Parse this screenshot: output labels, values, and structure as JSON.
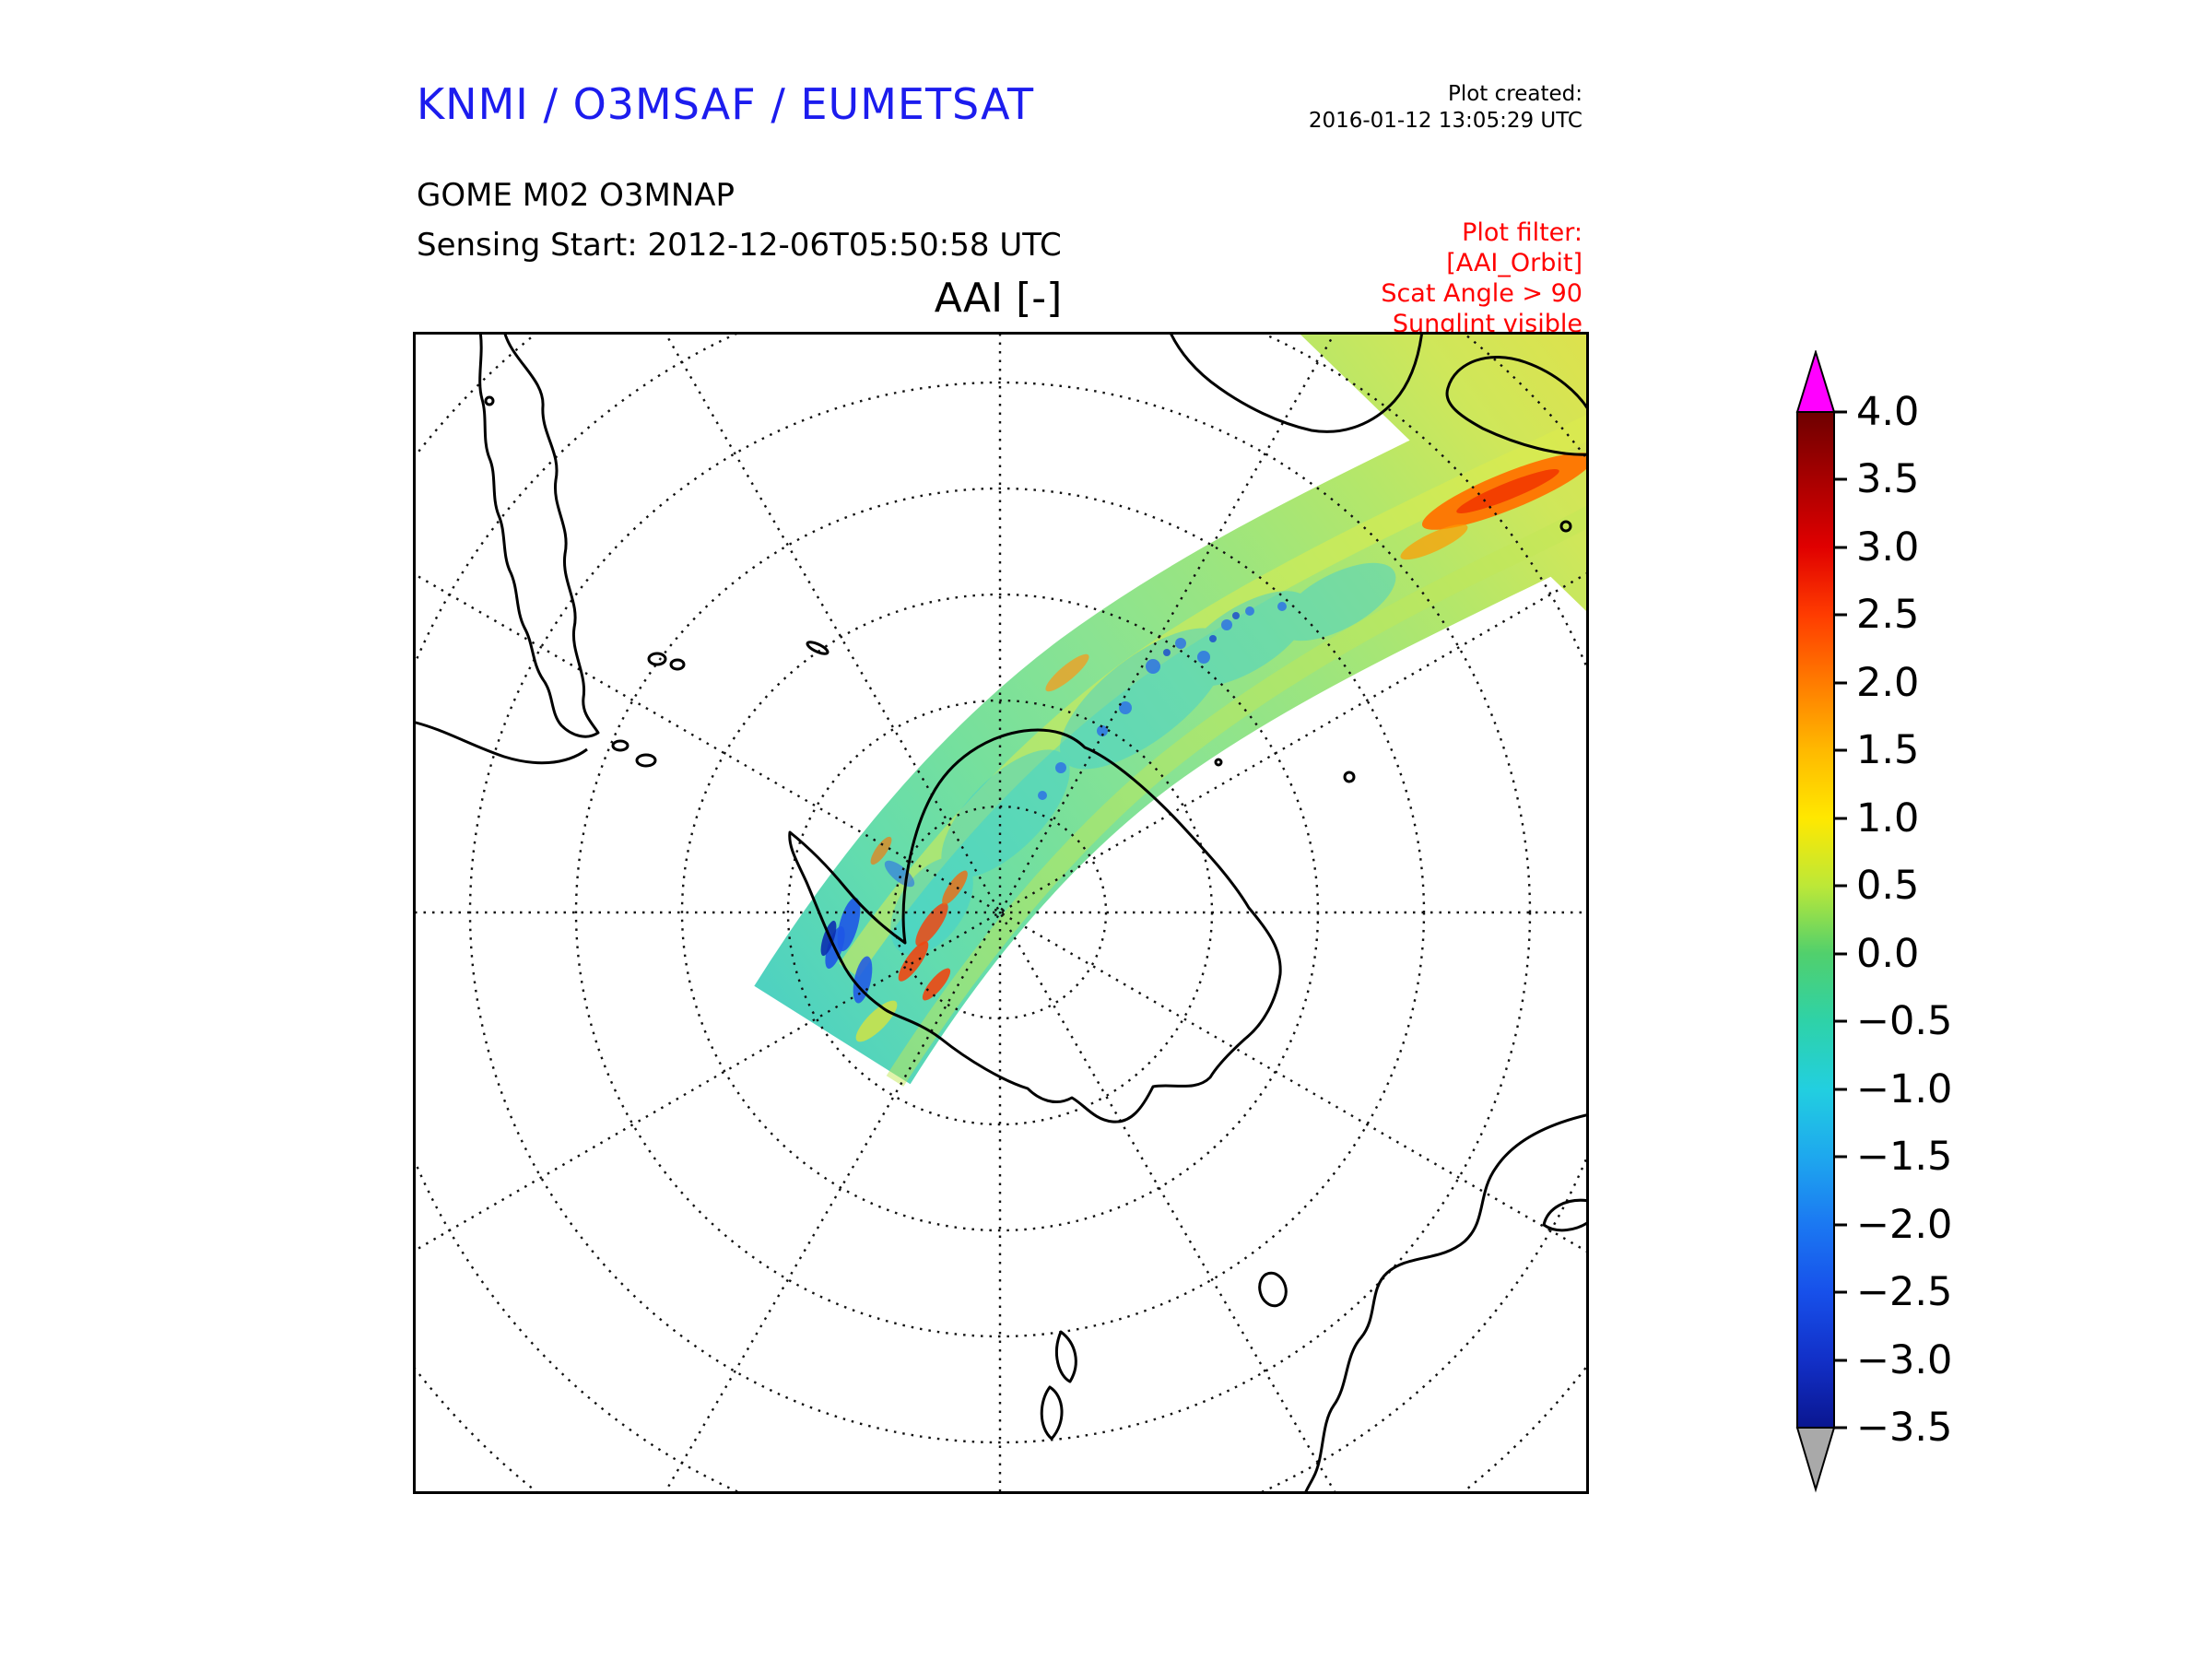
{
  "header": {
    "title": "KNMI / O3MSAF / EUMETSAT",
    "title_color": "#1c1cee",
    "plot_created_label": "Plot created:",
    "plot_created_value": "2016-01-12 13:05:29 UTC",
    "instrument_line": "GOME M02 O3MNAP",
    "sensing_line": "Sensing Start: 2012-12-06T05:50:58 UTC",
    "filter": {
      "color": "#ff0000",
      "lines": [
        "Plot filter:",
        "[AAI_Orbit]",
        "Scat Angle > 90",
        "Sunglint visible"
      ]
    }
  },
  "map": {
    "title": "AAI [-]"
  },
  "colorbar": {
    "labels": [
      "4.0",
      "3.5",
      "3.0",
      "2.5",
      "2.0",
      "1.5",
      "1.0",
      "0.5",
      "0.0",
      "−0.5",
      "−1.0",
      "−1.5",
      "−2.0",
      "−2.5",
      "−3.0",
      "−3.5"
    ],
    "over_color": "#ff00ff",
    "under_color": "#a9a9a9"
  },
  "chart_data": {
    "type": "heatmap",
    "title": "AAI [-]",
    "subtitle": "GOME M02 O3MNAP",
    "sensing_start": "2012-12-06T05:50:58 UTC",
    "plot_created": "2016-01-12 13:05:29 UTC",
    "plot_filter": [
      "AAI_Orbit",
      "Scat Angle > 90",
      "Sunglint visible"
    ],
    "projection": "polar stereographic centered on South Pole",
    "region": "Antarctica and Southern Ocean with southern South America, southern Africa, Australia and New Zealand coastlines",
    "grid": "dotted graticule: 7 concentric latitude circles and meridians every 30 degrees",
    "colorbar": {
      "label": "AAI [-]",
      "vmin": -3.5,
      "vmax": 4.0,
      "tick_step": 0.5,
      "ticks": [
        4.0,
        3.5,
        3.0,
        2.5,
        2.0,
        1.5,
        1.0,
        0.5,
        0.0,
        -0.5,
        -1.0,
        -1.5,
        -2.0,
        -2.5,
        -3.0,
        -3.5
      ],
      "over_arrow_color": "#ff00ff",
      "under_arrow_color": "#a9a9a9",
      "colormap": "dark blue → blue → cyan → green → yellow → orange → red → dark red"
    },
    "swath": {
      "description": "single satellite orbit swath crossing the map from its end near the Antarctic Peninsula toward the upper-right corner near southern Africa",
      "typical_values": "mostly -1.0 to 1.5 (cyan/green/yellow mottling)",
      "features": [
        {
          "location": "upper-right of swath near African coast",
          "value": "orange-red streak ≈ 2.5 to 3.0"
        },
        {
          "location": "swath terminus near Antarctic Peninsula",
          "value": "mixed speckles ≈ -2.5 (blue) to 3.0 (red)"
        },
        {
          "location": "mid-swath north of Antarctica",
          "value": "scattered blue speckles ≈ -1.5"
        }
      ]
    }
  }
}
